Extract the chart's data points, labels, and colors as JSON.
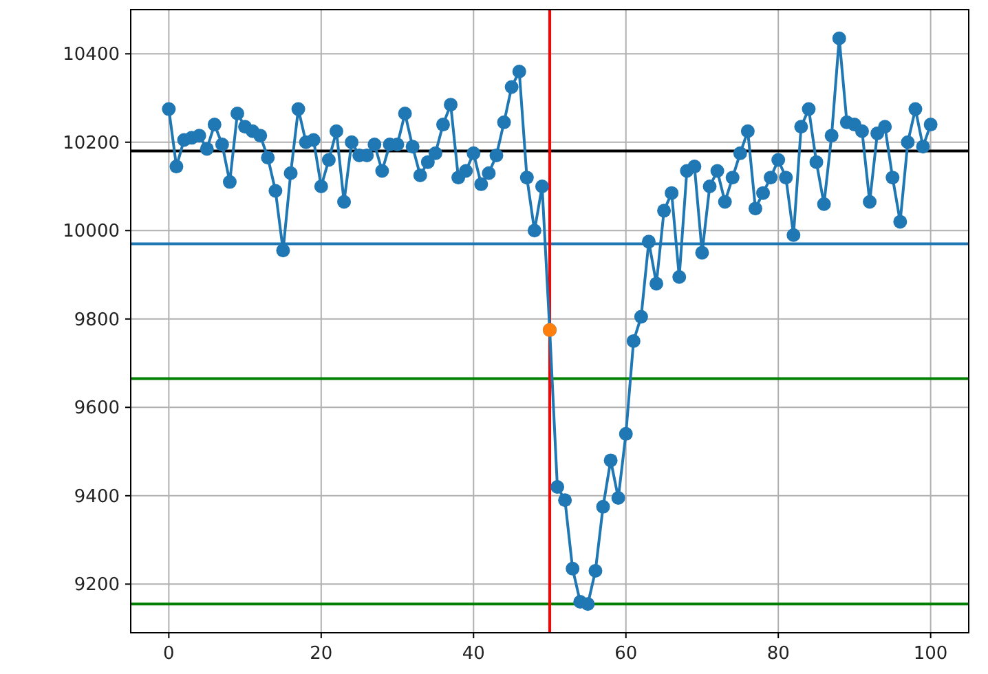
{
  "chart_data": {
    "type": "line",
    "x": [
      0,
      1,
      2,
      3,
      4,
      5,
      6,
      7,
      8,
      9,
      10,
      11,
      12,
      13,
      14,
      15,
      16,
      17,
      18,
      19,
      20,
      21,
      22,
      23,
      24,
      25,
      26,
      27,
      28,
      29,
      30,
      31,
      32,
      33,
      34,
      35,
      36,
      37,
      38,
      39,
      40,
      41,
      42,
      43,
      44,
      45,
      46,
      47,
      48,
      49,
      50,
      51,
      52,
      53,
      54,
      55,
      56,
      57,
      58,
      59,
      60,
      61,
      62,
      63,
      64,
      65,
      66,
      67,
      68,
      69,
      70,
      71,
      72,
      73,
      74,
      75,
      76,
      77,
      78,
      79,
      80,
      81,
      82,
      83,
      84,
      85,
      86,
      87,
      88,
      89,
      90,
      91,
      92,
      93,
      94,
      95,
      96,
      97,
      98,
      99,
      100
    ],
    "series": [
      {
        "color": "#1f77b4",
        "marker": "circle",
        "values": [
          10275,
          10145,
          10205,
          10210,
          10215,
          10185,
          10240,
          10195,
          10110,
          10265,
          10235,
          10225,
          10215,
          10165,
          10090,
          9955,
          10130,
          10275,
          10200,
          10205,
          10100,
          10160,
          10225,
          10065,
          10200,
          10170,
          10170,
          10195,
          10135,
          10195,
          10195,
          10265,
          10190,
          10125,
          10155,
          10175,
          10240,
          10285,
          10120,
          10135,
          10175,
          10105,
          10130,
          10170,
          10245,
          10325,
          10360,
          10120,
          10000,
          10100,
          9775,
          9420,
          9390,
          9235,
          9160,
          9155,
          9230,
          9375,
          9480,
          9395,
          9540,
          9750,
          9805,
          9975,
          9880,
          10045,
          10085,
          9895,
          10135,
          10145,
          9950,
          10100,
          10135,
          10065,
          10120,
          10175,
          10225,
          10050,
          10085,
          10120,
          10160,
          10120,
          9990,
          10235,
          10275,
          10155,
          10060,
          10215,
          10435,
          10245,
          10240,
          10225,
          10065,
          10220,
          10235,
          10120,
          10020,
          10200,
          10275,
          10190,
          10240
        ]
      },
      {
        "type": "scatter",
        "color": "#ff7f0e",
        "marker": "circle",
        "x": [
          50
        ],
        "values": [
          9775
        ]
      }
    ],
    "xlim": [
      -5,
      105
    ],
    "ylim": [
      9090,
      10500
    ],
    "xticks": [
      0,
      20,
      40,
      60,
      80,
      100
    ],
    "yticks": [
      9200,
      9400,
      9600,
      9800,
      10000,
      10200,
      10400
    ],
    "grid": true,
    "line_style": "solid",
    "ref_lines": [
      {
        "axis": "y",
        "value": 10180,
        "color": "#000000"
      },
      {
        "axis": "y",
        "value": 9970,
        "color": "#1f77b4"
      },
      {
        "axis": "y",
        "value": 9665,
        "color": "#008000"
      },
      {
        "axis": "y",
        "value": 9155,
        "color": "#008000"
      },
      {
        "axis": "x",
        "value": 50,
        "color": "#ff0000"
      }
    ]
  }
}
